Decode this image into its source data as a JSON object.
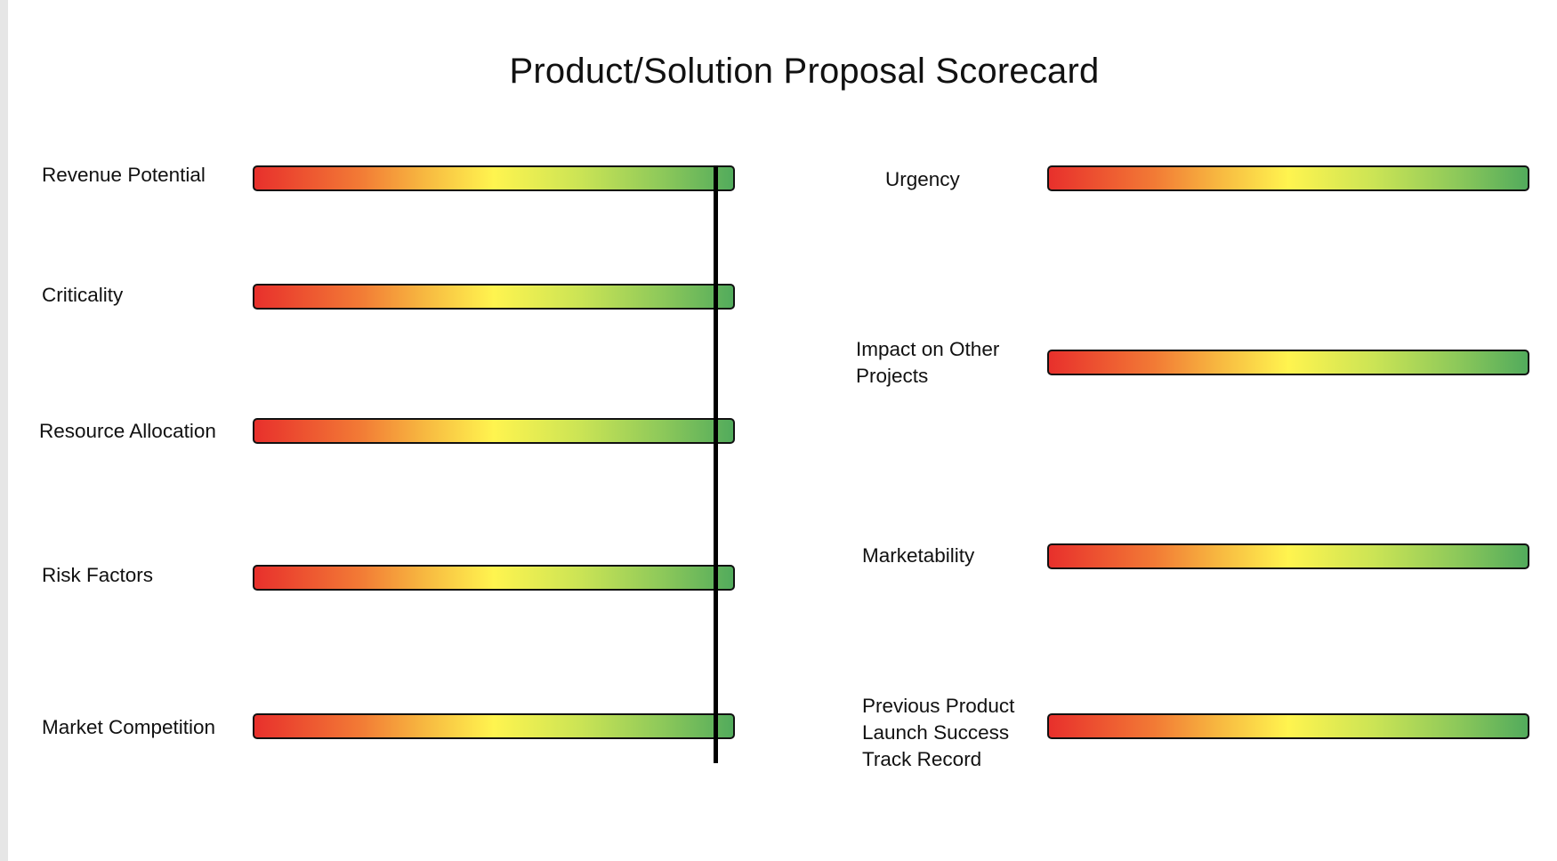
{
  "title": "Product/Solution Proposal Scorecard",
  "left_criteria": [
    {
      "label": "Revenue Potential"
    },
    {
      "label": "Criticality"
    },
    {
      "label": "Resource Allocation"
    },
    {
      "label": "Risk Factors"
    },
    {
      "label": "Market Competition"
    }
  ],
  "right_criteria": [
    {
      "label": "Urgency"
    },
    {
      "label_lines": [
        "Impact on Other",
        "Projects"
      ]
    },
    {
      "label": "Marketability"
    },
    {
      "label_lines": [
        "Previous Product",
        "Launch Success",
        "Track Record"
      ]
    }
  ],
  "colors": {
    "scale_low": "#e8302c",
    "scale_mid": "#fff44f",
    "scale_high": "#52ab5c"
  }
}
